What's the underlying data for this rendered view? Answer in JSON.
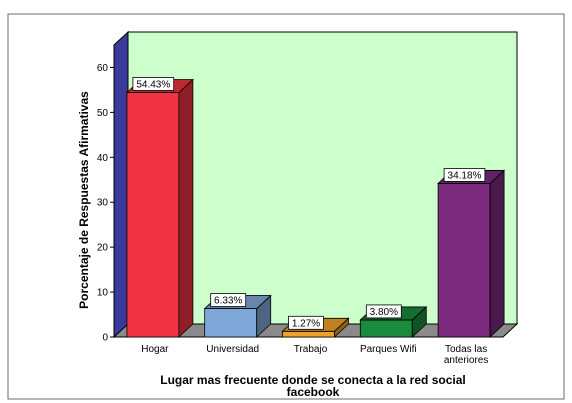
{
  "chart_data": {
    "type": "bar",
    "categories": [
      "Hogar",
      "Universidad",
      "Trabajo",
      "Parques Wifi",
      "Todas las anteriores"
    ],
    "category_lines": [
      [
        "Hogar"
      ],
      [
        "Universidad"
      ],
      [
        "Trabajo"
      ],
      [
        "Parques Wifi"
      ],
      [
        "Todas las",
        "anteriores"
      ]
    ],
    "values": [
      54.43,
      6.33,
      1.27,
      3.8,
      34.18
    ],
    "data_labels": [
      "54.43%",
      "6.33%",
      "1.27%",
      "3.80%",
      "34.18%"
    ],
    "bar_colors": [
      "#ef3340",
      "#7fa8d8",
      "#f0a12a",
      "#1a8a3c",
      "#7b2a7e"
    ],
    "yticks": [
      0,
      10,
      20,
      30,
      40,
      50,
      60
    ],
    "ylim": [
      0,
      65
    ],
    "xlabel_lines": [
      "Lugar mas frecuente donde se conecta a la red social",
      "facebook"
    ],
    "ylabel": "Porcentaje de Respuestas Afirmativas",
    "title": "",
    "grid": false,
    "legend": "none",
    "style": {
      "wall_color": "#ccffcc",
      "side_wall_color": "#3a3a9a",
      "floor_color": "#8a8a8a",
      "frame_border": "#6b6b6b"
    }
  }
}
